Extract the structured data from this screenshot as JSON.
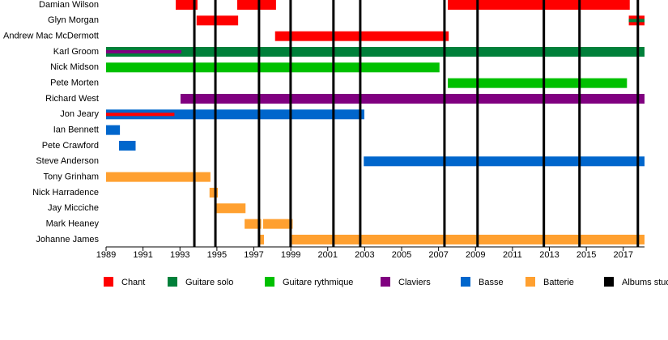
{
  "chart_data": {
    "type": "timeline",
    "categories": [
      "Damian Wilson",
      "Glyn Morgan",
      "Andrew Mac McDermott",
      "Karl Groom",
      "Nick Midson",
      "Pete Morten",
      "Richard West",
      "Jon Jeary",
      "Ian Bennett",
      "Pete Crawford",
      "Steve Anderson",
      "Tony Grinham",
      "Nick Harradence",
      "Jay Micciche",
      "Mark Heaney",
      "Johanne James"
    ],
    "xlim": [
      1989,
      2018.15
    ],
    "xticks": [
      1989,
      1991,
      1993,
      1995,
      1997,
      1999,
      2001,
      2003,
      2005,
      2007,
      2009,
      2011,
      2013,
      2015,
      2017
    ],
    "series": [
      {
        "name": "Chant",
        "color": "#ff0000",
        "values": [
          [
            [
              1992.77,
              1993.95
            ],
            [
              1996.1,
              1998.2
            ],
            [
              2007.5,
              2017.35
            ]
          ],
          [
            [
              1993.9,
              1996.15
            ],
            [
              2017.3,
              2018.15
            ]
          ],
          [
            [
              1998.15,
              2007.55
            ]
          ],
          [],
          [],
          [],
          [],
          [
            [
              1989,
              1992.7
            ]
          ],
          [],
          [],
          [],
          [],
          [],
          [],
          [],
          []
        ]
      },
      {
        "name": "Guitare solo",
        "color": "#00803a",
        "values": [
          [],
          [
            [
              2017.3,
              2018.15
            ]
          ],
          [],
          [
            [
              1989,
              2018.15
            ]
          ],
          [],
          [],
          [],
          [],
          [],
          [],
          [],
          [],
          [],
          [],
          [],
          []
        ]
      },
      {
        "name": "Guitare rythmique",
        "color": "#00c000",
        "values": [
          [],
          [],
          [],
          [],
          [
            [
              1989,
              2007.05
            ]
          ],
          [
            [
              2007.5,
              2017.2
            ]
          ],
          [],
          [],
          [],
          [],
          [],
          [],
          [],
          [],
          [],
          []
        ]
      },
      {
        "name": "Claviers",
        "color": "#800080",
        "values": [
          [],
          [],
          [],
          [
            [
              1989,
              1993.08
            ]
          ],
          [],
          [],
          [
            [
              1993.03,
              2018.15
            ]
          ],
          [],
          [],
          [],
          [],
          [],
          [],
          [],
          [],
          []
        ]
      },
      {
        "name": "Basse",
        "color": "#0066cc",
        "values": [
          [],
          [],
          [],
          [],
          [],
          [],
          [],
          [
            [
              1989,
              2002.98
            ]
          ],
          [
            [
              1989,
              1989.75
            ]
          ],
          [
            [
              1989.7,
              1990.6
            ]
          ],
          [
            [
              2002.95,
              2018.15
            ]
          ],
          [],
          [],
          [],
          [],
          []
        ]
      },
      {
        "name": "Batterie",
        "color": "#ffa030",
        "values": [
          [],
          [],
          [],
          [],
          [],
          [],
          [],
          [],
          [],
          [],
          [],
          [
            [
              1989,
              1994.65
            ]
          ],
          [
            [
              1994.6,
              1995.05
            ]
          ],
          [
            [
              1994.95,
              1996.55
            ]
          ],
          [
            [
              1996.5,
              1997.4
            ],
            [
              1997.5,
              1999.1
            ]
          ],
          [
            [
              1997.3,
              1997.55
            ],
            [
              1999.05,
              2018.15
            ]
          ]
        ]
      }
    ],
    "albums": {
      "name": "Albums studio",
      "color": "#000000",
      "values": [
        1993.78,
        1994.92,
        1997.28,
        1998.99,
        2001.31,
        2002.76,
        2007.32,
        2009.11,
        2012.7,
        2014.63,
        2017.79
      ]
    }
  }
}
